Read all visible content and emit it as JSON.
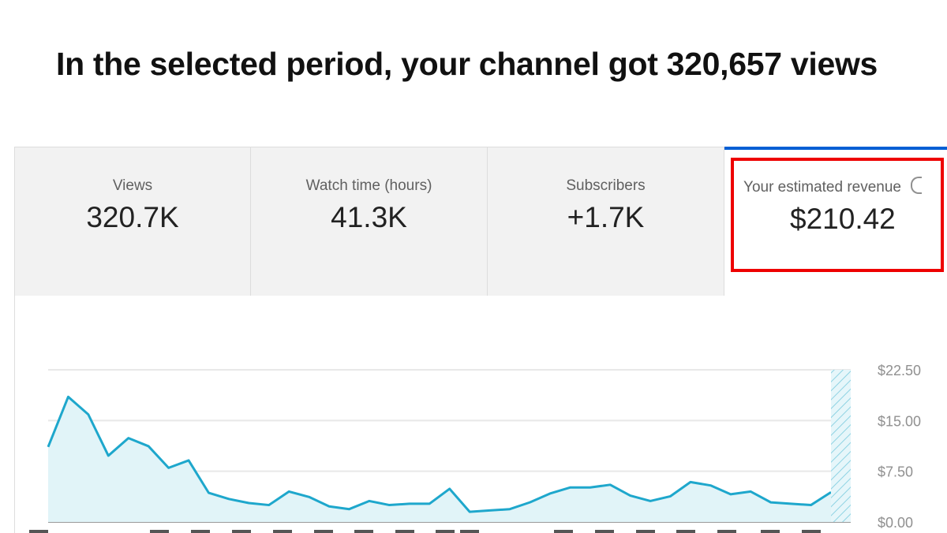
{
  "headline": "In the selected period, your channel got 320,657 views",
  "metrics": [
    {
      "label": "Views",
      "value": "320.7K"
    },
    {
      "label": "Watch time (hours)",
      "value": "41.3K"
    },
    {
      "label": "Subscribers",
      "value": "+1.7K"
    },
    {
      "label": "Your estimated revenue",
      "value": "$210.42",
      "selected": true,
      "highlighted": true,
      "icon": "info-icon"
    }
  ],
  "colors": {
    "accent": "#065fd4",
    "highlight": "#ee0000",
    "line": "#1ea7cc",
    "fill": "#e1f4f8"
  },
  "chart_data": {
    "type": "area",
    "ylim": [
      0,
      22.5
    ],
    "y_ticks": [
      "$0.00",
      "$7.50",
      "$15.00",
      "$22.50"
    ],
    "y_tick_values": [
      0,
      7.5,
      15,
      22.5
    ],
    "grid": true,
    "y_axis_position": "right",
    "values": [
      11.1,
      18.5,
      15.9,
      9.8,
      12.4,
      11.2,
      8.0,
      9.1,
      4.3,
      3.4,
      2.8,
      2.5,
      4.5,
      3.7,
      2.3,
      1.9,
      3.1,
      2.5,
      2.7,
      2.7,
      4.9,
      1.5,
      1.7,
      1.9,
      2.9,
      4.2,
      5.1,
      5.1,
      5.5,
      3.9,
      3.1,
      3.8,
      5.9,
      5.4,
      4.1,
      4.5,
      2.9,
      2.7,
      2.5,
      4.4
    ],
    "partial_period_hatched": true
  }
}
